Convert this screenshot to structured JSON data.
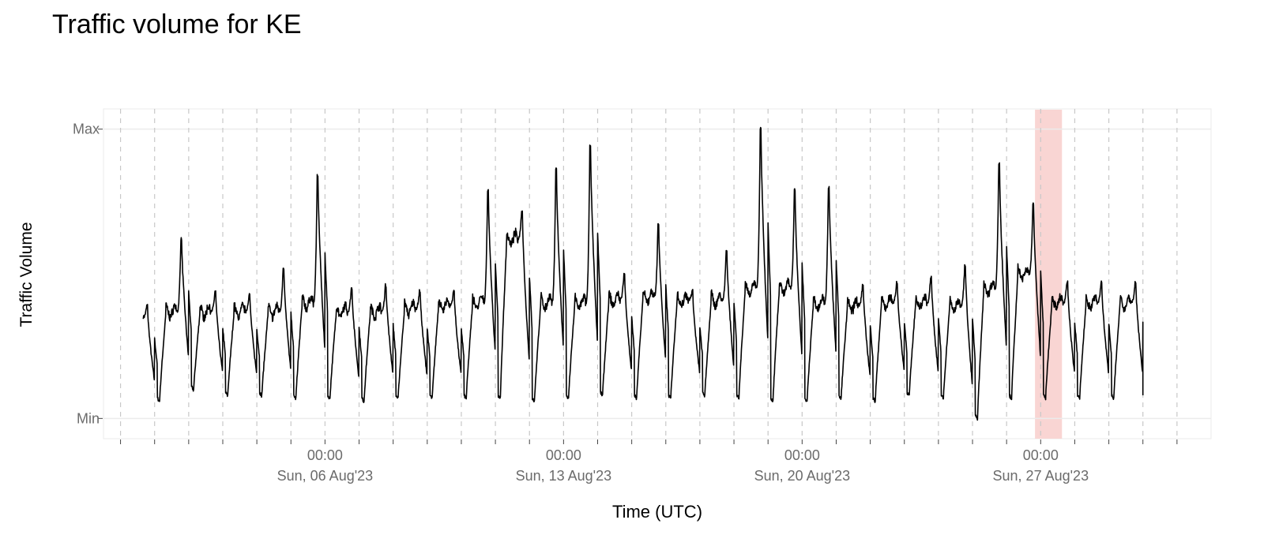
{
  "chart_data": {
    "type": "line",
    "title": "Traffic volume for KE",
    "xlabel": "Time (UTC)",
    "ylabel": "Traffic Volume",
    "y_ticks": [
      {
        "label": "Max",
        "value": 1.0
      },
      {
        "label": "Min",
        "value": 0.0
      }
    ],
    "ylim": [
      -0.07,
      1.07
    ],
    "x_range": [
      "2023-07-30T12:00",
      "2023-09-01T00:00"
    ],
    "x_ticks": [
      {
        "time": "Sun, 06 Aug'23 00:00",
        "line1": "00:00",
        "line2": "Sun, 06 Aug'23"
      },
      {
        "time": "Sun, 13 Aug'23 00:00",
        "line1": "00:00",
        "line2": "Sun, 13 Aug'23"
      },
      {
        "time": "Sun, 20 Aug'23 00:00",
        "line1": "00:00",
        "line2": "Sun, 20 Aug'23"
      },
      {
        "time": "Sun, 27 Aug'23 00:00",
        "line1": "00:00",
        "line2": "Sun, 27 Aug'23"
      }
    ],
    "grid": true,
    "daily_gridlines": "dashed",
    "highlight_window": {
      "start": "2023-08-26T20:00",
      "end": "2023-08-27T15:00",
      "color": "#f9d5d3"
    },
    "series": [
      {
        "color": "#000000",
        "start": "2023-07-31T16:00",
        "end": "2023-08-30T00:00",
        "daily": [
          {
            "day": "2023-07-31",
            "min": 0.07,
            "plateau": 0.35,
            "peak": 0.39
          },
          {
            "day": "2023-08-01",
            "min": 0.06,
            "plateau": 0.37,
            "peak": 0.62
          },
          {
            "day": "2023-08-02",
            "min": 0.1,
            "plateau": 0.37,
            "peak": 0.44
          },
          {
            "day": "2023-08-03",
            "min": 0.08,
            "plateau": 0.37,
            "peak": 0.43
          },
          {
            "day": "2023-08-04",
            "min": 0.08,
            "plateau": 0.37,
            "peak": 0.52
          },
          {
            "day": "2023-08-05",
            "min": 0.07,
            "plateau": 0.4,
            "peak": 0.84
          },
          {
            "day": "2023-08-06",
            "min": 0.07,
            "plateau": 0.37,
            "peak": 0.45
          },
          {
            "day": "2023-08-07",
            "min": 0.06,
            "plateau": 0.37,
            "peak": 0.46
          },
          {
            "day": "2023-08-08",
            "min": 0.07,
            "plateau": 0.38,
            "peak": 0.44
          },
          {
            "day": "2023-08-09",
            "min": 0.07,
            "plateau": 0.39,
            "peak": 0.44
          },
          {
            "day": "2023-08-10",
            "min": 0.07,
            "plateau": 0.4,
            "peak": 0.79
          },
          {
            "day": "2023-08-11",
            "min": 0.07,
            "plateau": 0.62,
            "peak": 0.72
          },
          {
            "day": "2023-08-12",
            "min": 0.06,
            "plateau": 0.4,
            "peak": 0.86
          },
          {
            "day": "2023-08-13",
            "min": 0.07,
            "plateau": 0.4,
            "peak": 0.94
          },
          {
            "day": "2023-08-14",
            "min": 0.08,
            "plateau": 0.41,
            "peak": 0.5
          },
          {
            "day": "2023-08-15",
            "min": 0.07,
            "plateau": 0.42,
            "peak": 0.67
          },
          {
            "day": "2023-08-16",
            "min": 0.07,
            "plateau": 0.41,
            "peak": 0.44
          },
          {
            "day": "2023-08-17",
            "min": 0.08,
            "plateau": 0.41,
            "peak": 0.58
          },
          {
            "day": "2023-08-18",
            "min": 0.07,
            "plateau": 0.45,
            "peak": 1.0
          },
          {
            "day": "2023-08-19",
            "min": 0.06,
            "plateau": 0.45,
            "peak": 0.79
          },
          {
            "day": "2023-08-20",
            "min": 0.06,
            "plateau": 0.4,
            "peak": 0.8
          },
          {
            "day": "2023-08-21",
            "min": 0.07,
            "plateau": 0.39,
            "peak": 0.46
          },
          {
            "day": "2023-08-22",
            "min": 0.06,
            "plateau": 0.4,
            "peak": 0.47
          },
          {
            "day": "2023-08-23",
            "min": 0.08,
            "plateau": 0.4,
            "peak": 0.49
          },
          {
            "day": "2023-08-24",
            "min": 0.07,
            "plateau": 0.39,
            "peak": 0.53
          },
          {
            "day": "2023-08-25",
            "min": 0.0,
            "plateau": 0.45,
            "peak": 0.88
          },
          {
            "day": "2023-08-26",
            "min": 0.07,
            "plateau": 0.5,
            "peak": 0.74
          },
          {
            "day": "2023-08-27",
            "min": 0.07,
            "plateau": 0.4,
            "peak": 0.47
          }
        ],
        "final_value": 0.08
      }
    ]
  }
}
